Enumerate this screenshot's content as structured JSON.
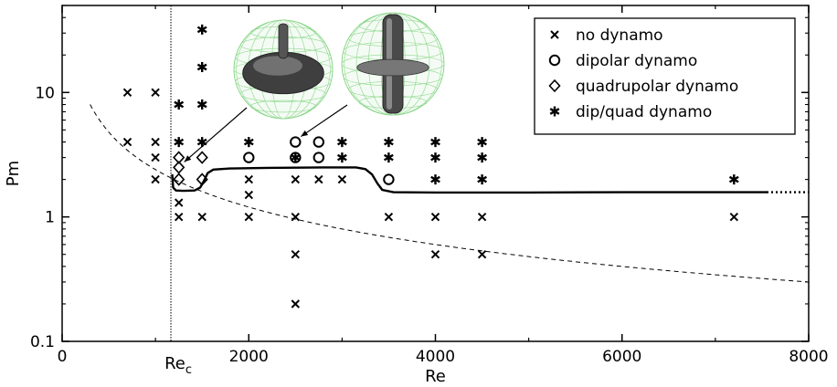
{
  "chart_data": {
    "type": "scatter",
    "title": "",
    "xlabel": "Re",
    "ylabel": "Pm",
    "xlim": [
      0,
      8000
    ],
    "ylim": [
      0.1,
      50
    ],
    "yscale": "log",
    "x_ticks": [
      0,
      2000,
      4000,
      6000,
      8000
    ],
    "x_tick_labels": [
      "0",
      "2000",
      "4000",
      "6000",
      "8000"
    ],
    "y_ticks": [
      0.1,
      1,
      10
    ],
    "y_tick_labels": [
      "0.1",
      "1",
      "10"
    ],
    "annotations": [
      {
        "text": "Re",
        "subscript": "c",
        "x": 1166
      }
    ],
    "legend_position": "top-right",
    "series": [
      {
        "name": "no dynamo",
        "marker": "x",
        "points": [
          [
            700,
            10
          ],
          [
            700,
            4
          ],
          [
            1000,
            10
          ],
          [
            1000,
            4
          ],
          [
            1000,
            3
          ],
          [
            1000,
            2
          ],
          [
            1250,
            1.3
          ],
          [
            1250,
            1
          ],
          [
            1500,
            1
          ],
          [
            2000,
            2
          ],
          [
            2000,
            1.5
          ],
          [
            2000,
            1
          ],
          [
            2500,
            2
          ],
          [
            2500,
            1
          ],
          [
            2500,
            0.5
          ],
          [
            2500,
            0.2
          ],
          [
            2750,
            2
          ],
          [
            3000,
            2
          ],
          [
            3500,
            1
          ],
          [
            4000,
            1
          ],
          [
            4000,
            0.5
          ],
          [
            4500,
            1
          ],
          [
            4500,
            0.5
          ],
          [
            7200,
            1
          ]
        ]
      },
      {
        "name": "dipolar dynamo",
        "marker": "o",
        "points": [
          [
            2000,
            3
          ],
          [
            2500,
            4
          ],
          [
            2500,
            3
          ],
          [
            2750,
            4
          ],
          [
            2750,
            3
          ],
          [
            3500,
            2
          ]
        ]
      },
      {
        "name": "quadrupolar dynamo",
        "marker": "diamond",
        "points": [
          [
            1250,
            3
          ],
          [
            1250,
            2.5
          ],
          [
            1250,
            2
          ],
          [
            1500,
            3
          ],
          [
            1500,
            2
          ]
        ]
      },
      {
        "name": "dip/quad dynamo",
        "marker": "asterisk",
        "points": [
          [
            1250,
            8
          ],
          [
            1250,
            4
          ],
          [
            1500,
            32
          ],
          [
            1500,
            16
          ],
          [
            1500,
            8
          ],
          [
            1500,
            4
          ],
          [
            2000,
            4
          ],
          [
            2500,
            3
          ],
          [
            3000,
            4
          ],
          [
            3000,
            3
          ],
          [
            3500,
            4
          ],
          [
            3500,
            3
          ],
          [
            4000,
            4
          ],
          [
            4000,
            3
          ],
          [
            4000,
            2
          ],
          [
            4500,
            4
          ],
          [
            4500,
            3
          ],
          [
            4500,
            2
          ],
          [
            7200,
            2
          ]
        ]
      }
    ],
    "critical_curve": [
      [
        1180,
        2.2
      ],
      [
        1190,
        1.72
      ],
      [
        1220,
        1.63
      ],
      [
        1300,
        1.62
      ],
      [
        1420,
        1.63
      ],
      [
        1480,
        1.72
      ],
      [
        1520,
        1.95
      ],
      [
        1560,
        2.25
      ],
      [
        1620,
        2.4
      ],
      [
        1800,
        2.45
      ],
      [
        2200,
        2.48
      ],
      [
        2800,
        2.5
      ],
      [
        3150,
        2.5
      ],
      [
        3250,
        2.42
      ],
      [
        3320,
        2.2
      ],
      [
        3380,
        1.85
      ],
      [
        3430,
        1.65
      ],
      [
        3550,
        1.58
      ],
      [
        4000,
        1.57
      ],
      [
        5000,
        1.57
      ],
      [
        6000,
        1.58
      ],
      [
        7000,
        1.58
      ],
      [
        7550,
        1.58
      ]
    ],
    "critical_curve_extension": [
      [
        7550,
        1.58
      ],
      [
        8000,
        1.58
      ]
    ]
  }
}
